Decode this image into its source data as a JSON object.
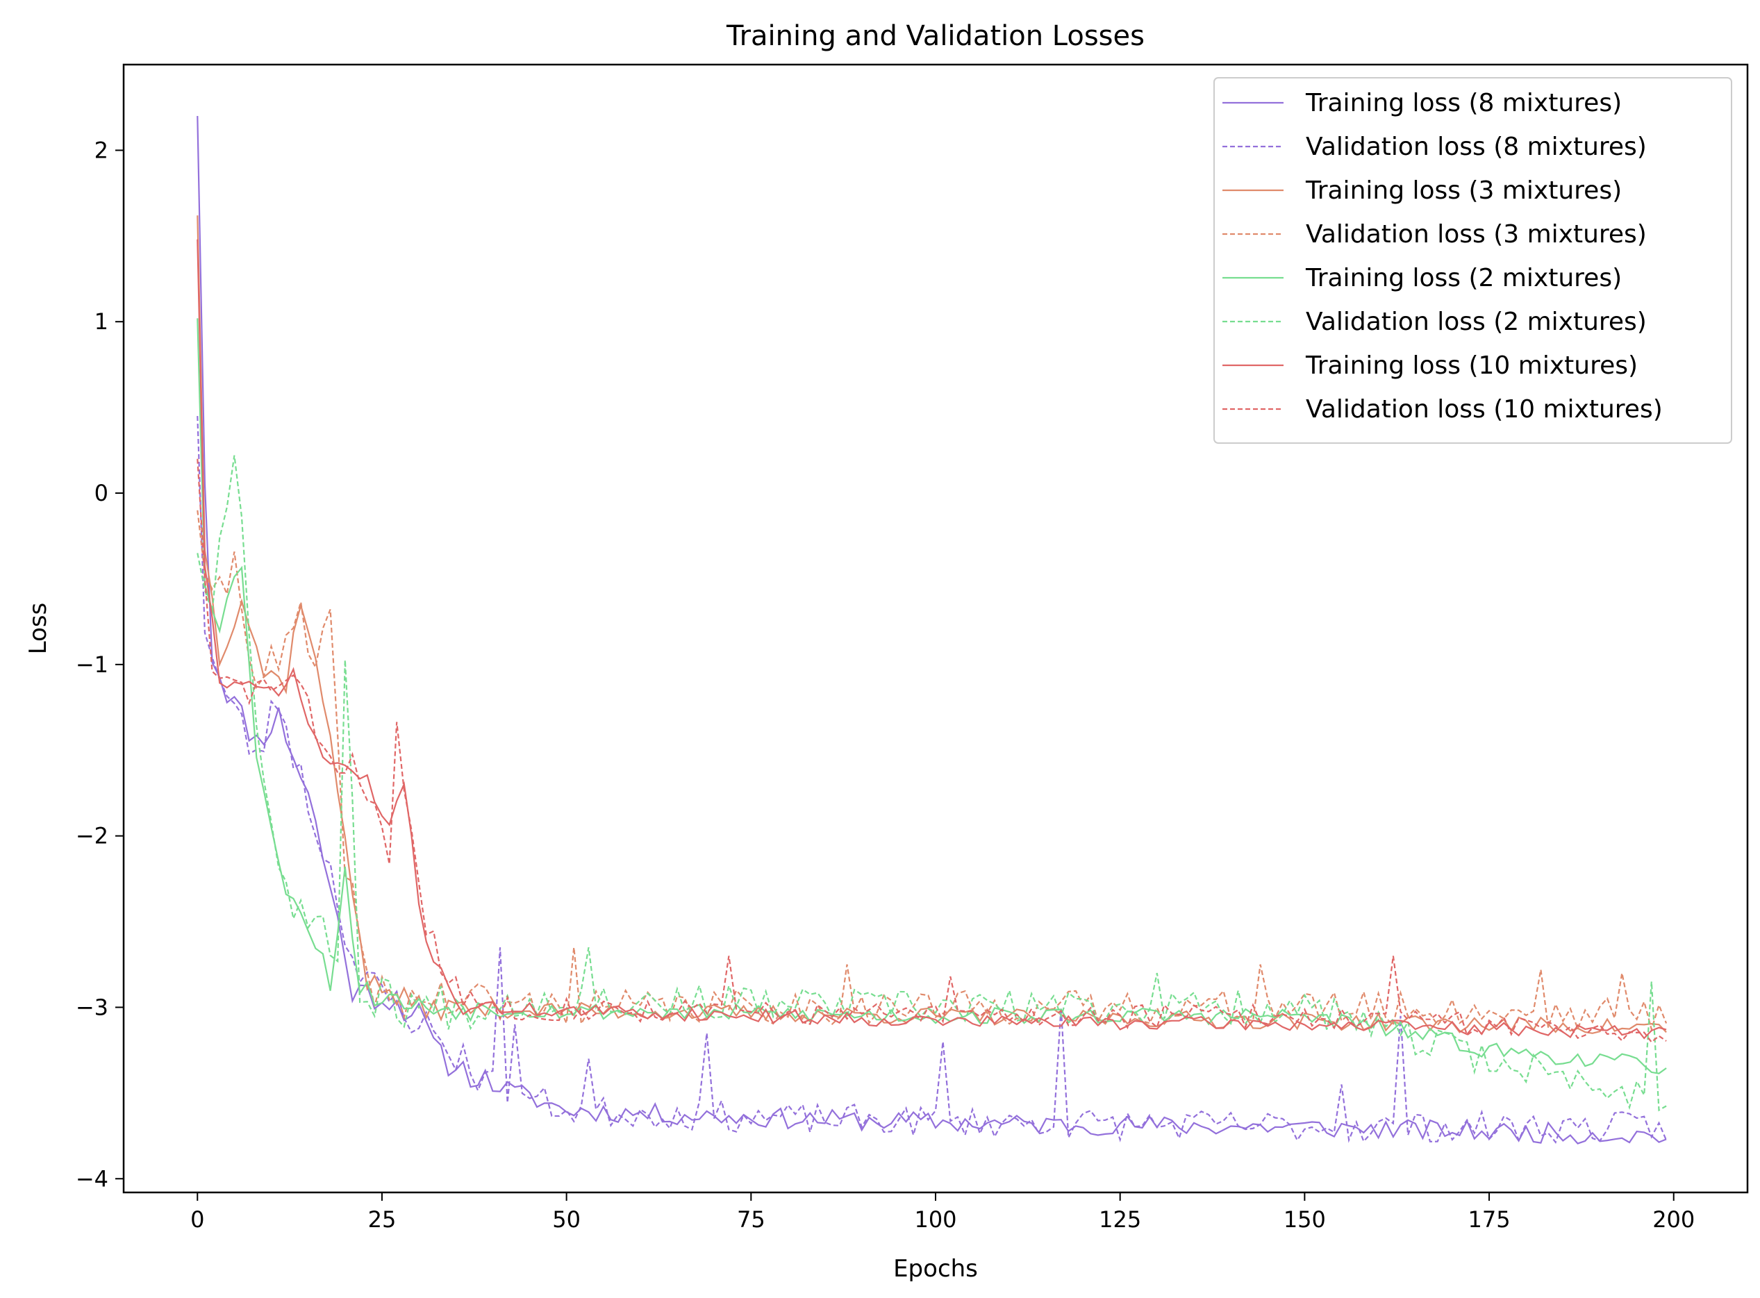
{
  "chart_data": {
    "type": "line",
    "title": "Training and Validation Losses",
    "xlabel": "Epochs",
    "ylabel": "Loss",
    "xlim": [
      -10,
      210
    ],
    "ylim": [
      -4.08,
      2.5
    ],
    "xticks": [
      0,
      25,
      50,
      75,
      100,
      125,
      150,
      175,
      200
    ],
    "yticks": [
      2,
      1,
      0,
      -1,
      -2,
      -3,
      -4
    ],
    "ytick_labels": [
      "2",
      "1",
      "0",
      "−1",
      "−2",
      "−3",
      "−4"
    ],
    "grid": false,
    "legend_position": "top-right",
    "series": [
      {
        "name": "Training loss (8 mixtures)",
        "color": "#9370db",
        "dash": "solid",
        "anchors": [
          [
            0,
            2.2
          ],
          [
            1,
            0.1
          ],
          [
            2,
            -0.95
          ],
          [
            4,
            -1.15
          ],
          [
            8,
            -1.45
          ],
          [
            11,
            -1.3
          ],
          [
            15,
            -1.75
          ],
          [
            18,
            -2.3
          ],
          [
            21,
            -2.9
          ],
          [
            26,
            -2.95
          ],
          [
            30,
            -3.05
          ],
          [
            33,
            -3.3
          ],
          [
            40,
            -3.45
          ],
          [
            50,
            -3.6
          ],
          [
            60,
            -3.62
          ],
          [
            80,
            -3.65
          ],
          [
            110,
            -3.68
          ],
          [
            150,
            -3.7
          ],
          [
            200,
            -3.75
          ]
        ],
        "noise": 0.06,
        "seed": 11
      },
      {
        "name": "Validation loss (8 mixtures)",
        "color": "#9370db",
        "dash": "dashed",
        "anchors": [
          [
            0,
            0.45
          ],
          [
            1,
            -0.75
          ],
          [
            3,
            -1.1
          ],
          [
            8,
            -1.55
          ],
          [
            11,
            -1.2
          ],
          [
            15,
            -1.8
          ],
          [
            18,
            -2.2
          ],
          [
            22,
            -2.85
          ],
          [
            28,
            -3.0
          ],
          [
            33,
            -3.2
          ],
          [
            40,
            -3.45
          ],
          [
            50,
            -3.6
          ],
          [
            80,
            -3.65
          ],
          [
            120,
            -3.68
          ],
          [
            160,
            -3.7
          ],
          [
            200,
            -3.7
          ]
        ],
        "noise": 0.09,
        "seed": 23,
        "spikes": [
          [
            41,
            -2.65
          ],
          [
            43,
            -3.1
          ],
          [
            53,
            -3.3
          ],
          [
            69,
            -3.15
          ],
          [
            101,
            -3.2
          ],
          [
            117,
            -3.0
          ],
          [
            163,
            -3.05
          ],
          [
            155,
            -3.45
          ]
        ]
      },
      {
        "name": "Training loss (3 mixtures)",
        "color": "#e08a6b",
        "dash": "solid",
        "anchors": [
          [
            0,
            1.62
          ],
          [
            1,
            -0.3
          ],
          [
            3,
            -0.95
          ],
          [
            6,
            -0.6
          ],
          [
            9,
            -1.05
          ],
          [
            12,
            -1.1
          ],
          [
            14,
            -0.6
          ],
          [
            17,
            -1.2
          ],
          [
            20,
            -2.0
          ],
          [
            23,
            -2.85
          ],
          [
            30,
            -3.0
          ],
          [
            50,
            -3.02
          ],
          [
            100,
            -3.05
          ],
          [
            150,
            -3.08
          ],
          [
            200,
            -3.12
          ]
        ],
        "noise": 0.05,
        "seed": 37
      },
      {
        "name": "Validation loss (3 mixtures)",
        "color": "#e08a6b",
        "dash": "dashed",
        "anchors": [
          [
            0,
            -0.1
          ],
          [
            2,
            -0.7
          ],
          [
            5,
            -0.4
          ],
          [
            8,
            -1.05
          ],
          [
            11,
            -1.0
          ],
          [
            14,
            -0.75
          ],
          [
            16,
            -1.05
          ],
          [
            18,
            -0.8
          ],
          [
            20,
            -2.1
          ],
          [
            23,
            -2.9
          ],
          [
            30,
            -2.95
          ],
          [
            50,
            -3.0
          ],
          [
            100,
            -3.0
          ],
          [
            150,
            -3.0
          ],
          [
            200,
            -3.05
          ]
        ],
        "noise": 0.1,
        "seed": 41,
        "spikes": [
          [
            51,
            -2.65
          ],
          [
            88,
            -2.75
          ],
          [
            144,
            -2.75
          ],
          [
            182,
            -2.78
          ],
          [
            193,
            -2.8
          ]
        ]
      },
      {
        "name": "Training loss (2 mixtures)",
        "color": "#77dd90",
        "dash": "solid",
        "anchors": [
          [
            0,
            1.02
          ],
          [
            1,
            -0.5
          ],
          [
            3,
            -0.75
          ],
          [
            6,
            -0.4
          ],
          [
            8,
            -1.5
          ],
          [
            11,
            -2.2
          ],
          [
            15,
            -2.5
          ],
          [
            18,
            -2.85
          ],
          [
            20,
            -2.2
          ],
          [
            22,
            -2.9
          ],
          [
            30,
            -3.0
          ],
          [
            50,
            -3.02
          ],
          [
            100,
            -3.05
          ],
          [
            150,
            -3.05
          ],
          [
            165,
            -3.15
          ],
          [
            175,
            -3.25
          ],
          [
            200,
            -3.35
          ]
        ],
        "noise": 0.05,
        "seed": 53
      },
      {
        "name": "Validation loss (2 mixtures)",
        "color": "#77dd90",
        "dash": "dashed",
        "anchors": [
          [
            0,
            -0.35
          ],
          [
            2,
            -0.65
          ],
          [
            5,
            0.35
          ],
          [
            7,
            -0.75
          ],
          [
            9,
            -1.7
          ],
          [
            12,
            -2.3
          ],
          [
            17,
            -2.6
          ],
          [
            19,
            -2.7
          ],
          [
            20,
            -0.85
          ],
          [
            22,
            -2.9
          ],
          [
            30,
            -3.0
          ],
          [
            50,
            -2.95
          ],
          [
            100,
            -3.0
          ],
          [
            150,
            -3.0
          ],
          [
            170,
            -3.25
          ],
          [
            199,
            -3.55
          ]
        ],
        "noise": 0.1,
        "seed": 67,
        "spikes": [
          [
            53,
            -2.65
          ],
          [
            130,
            -2.8
          ],
          [
            197,
            -2.85
          ]
        ]
      },
      {
        "name": "Training loss (10 mixtures)",
        "color": "#e06666",
        "dash": "solid",
        "anchors": [
          [
            0,
            1.48
          ],
          [
            1,
            -0.4
          ],
          [
            3,
            -1.1
          ],
          [
            7,
            -1.15
          ],
          [
            10,
            -1.15
          ],
          [
            13,
            -1.08
          ],
          [
            17,
            -1.55
          ],
          [
            20,
            -1.6
          ],
          [
            23,
            -1.7
          ],
          [
            26,
            -1.95
          ],
          [
            28,
            -1.65
          ],
          [
            30,
            -2.45
          ],
          [
            33,
            -2.8
          ],
          [
            36,
            -3.0
          ],
          [
            50,
            -3.02
          ],
          [
            100,
            -3.08
          ],
          [
            150,
            -3.1
          ],
          [
            200,
            -3.15
          ]
        ],
        "noise": 0.04,
        "seed": 71
      },
      {
        "name": "Validation loss (10 mixtures)",
        "color": "#e06666",
        "dash": "dashed",
        "anchors": [
          [
            0,
            0.2
          ],
          [
            2,
            -1.1
          ],
          [
            7,
            -1.15
          ],
          [
            13,
            -1.1
          ],
          [
            18,
            -1.55
          ],
          [
            21,
            -1.6
          ],
          [
            24,
            -1.75
          ],
          [
            26,
            -2.25
          ],
          [
            27,
            -1.38
          ],
          [
            29,
            -2.0
          ],
          [
            31,
            -2.5
          ],
          [
            34,
            -2.9
          ],
          [
            40,
            -3.0
          ],
          [
            100,
            -3.05
          ],
          [
            150,
            -3.05
          ],
          [
            200,
            -3.15
          ]
        ],
        "noise": 0.07,
        "seed": 83,
        "spikes": [
          [
            72,
            -2.7
          ],
          [
            162,
            -2.7
          ],
          [
            102,
            -2.82
          ]
        ]
      }
    ]
  }
}
